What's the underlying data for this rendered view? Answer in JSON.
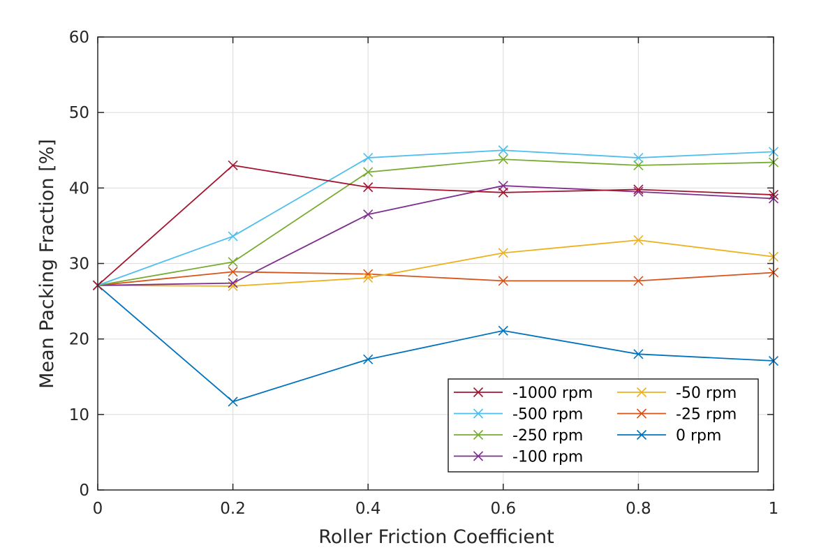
{
  "chart_data": {
    "type": "line",
    "title": "",
    "xlabel": "Roller Friction Coefficient",
    "ylabel": "Mean Packing Fraction [%]",
    "xlim": [
      0,
      1
    ],
    "ylim": [
      0,
      60
    ],
    "x_ticks": [
      0,
      0.2,
      0.4,
      0.6,
      0.8,
      1
    ],
    "x_tick_labels": [
      "0",
      "0.2",
      "0.4",
      "0.6",
      "0.8",
      "1"
    ],
    "y_ticks": [
      0,
      10,
      20,
      30,
      40,
      50,
      60
    ],
    "y_tick_labels": [
      "0",
      "10",
      "20",
      "30",
      "40",
      "50",
      "60"
    ],
    "grid": true,
    "marker": "x",
    "legend_position": "bottom-right",
    "legend_columns": 2,
    "x": [
      0,
      0.2,
      0.4,
      0.6,
      0.8,
      1
    ],
    "series": [
      {
        "name": "-1000 rpm",
        "color": "#A2142F",
        "values": [
          27.1,
          43.0,
          40.1,
          39.4,
          39.8,
          39.1
        ]
      },
      {
        "name": "-500 rpm",
        "color": "#4DBEEE",
        "values": [
          27.1,
          33.6,
          44.0,
          45.0,
          44.0,
          44.8
        ]
      },
      {
        "name": "-250 rpm",
        "color": "#77AC30",
        "values": [
          27.1,
          30.2,
          42.1,
          43.8,
          43.0,
          43.4
        ]
      },
      {
        "name": "-100 rpm",
        "color": "#7E2F8E",
        "values": [
          27.1,
          27.4,
          36.5,
          40.3,
          39.5,
          38.6
        ]
      },
      {
        "name": "-50 rpm",
        "color": "#EDB120",
        "values": [
          27.1,
          27.0,
          28.1,
          31.4,
          33.1,
          30.9
        ]
      },
      {
        "name": "-25 rpm",
        "color": "#D95319",
        "values": [
          27.1,
          28.9,
          28.6,
          27.7,
          27.7,
          28.8
        ]
      },
      {
        "name": "0 rpm",
        "color": "#0072BD",
        "values": [
          27.1,
          11.7,
          17.3,
          21.1,
          18.0,
          17.1
        ]
      }
    ]
  }
}
